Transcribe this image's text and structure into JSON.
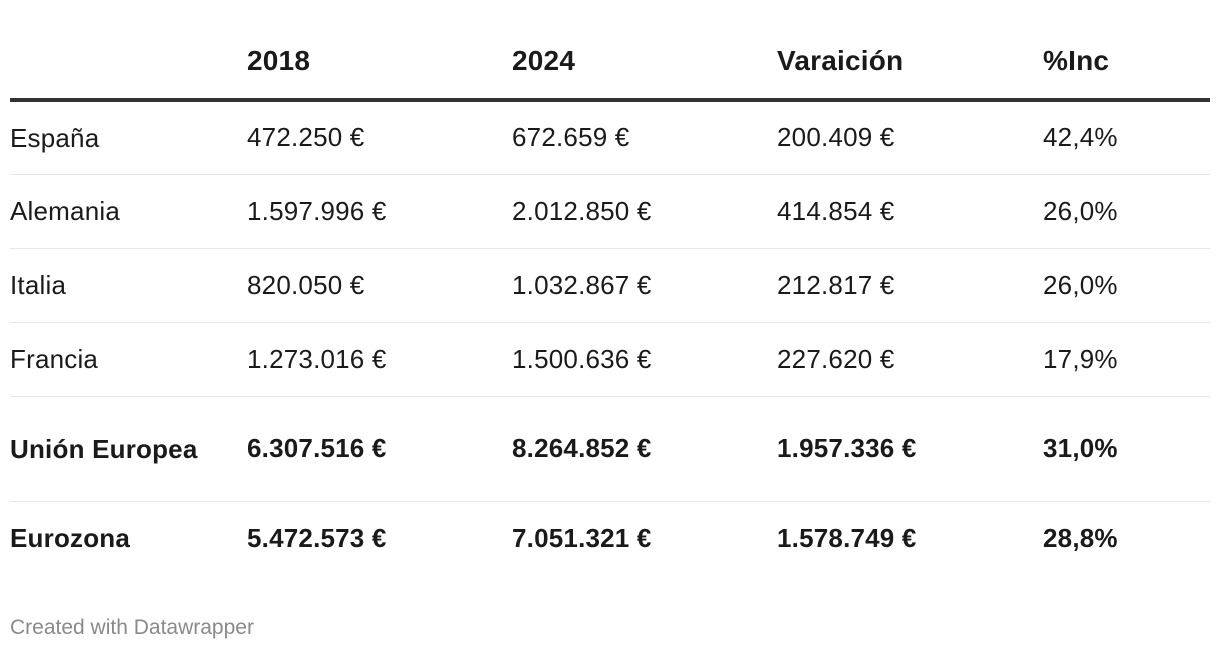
{
  "chart_data": {
    "type": "table",
    "columns": [
      "",
      "2018",
      "2024",
      "Varaición",
      "%Inc"
    ],
    "rows": [
      {
        "name": "España",
        "v2018": "472.250 €",
        "v2024": "672.659 €",
        "change": "200.409 €",
        "pct": "42,4%",
        "bold": false
      },
      {
        "name": "Alemania",
        "v2018": "1.597.996 €",
        "v2024": "2.012.850 €",
        "change": "414.854 €",
        "pct": "26,0%",
        "bold": false
      },
      {
        "name": "Italia",
        "v2018": "820.050 €",
        "v2024": "1.032.867 €",
        "change": "212.817 €",
        "pct": "26,0%",
        "bold": false
      },
      {
        "name": "Francia",
        "v2018": "1.273.016 €",
        "v2024": "1.500.636 €",
        "change": "227.620 €",
        "pct": "17,9%",
        "bold": false
      },
      {
        "name": "Unión Europea",
        "v2018": "6.307.516 €",
        "v2024": "8.264.852 €",
        "change": "1.957.336 €",
        "pct": "31,0%",
        "bold": true
      },
      {
        "name": "Eurozona",
        "v2018": "5.472.573 €",
        "v2024": "7.051.321 €",
        "change": "1.578.749 €",
        "pct": "28,8%",
        "bold": true
      }
    ]
  },
  "footer": {
    "credit": "Created with Datawrapper"
  }
}
